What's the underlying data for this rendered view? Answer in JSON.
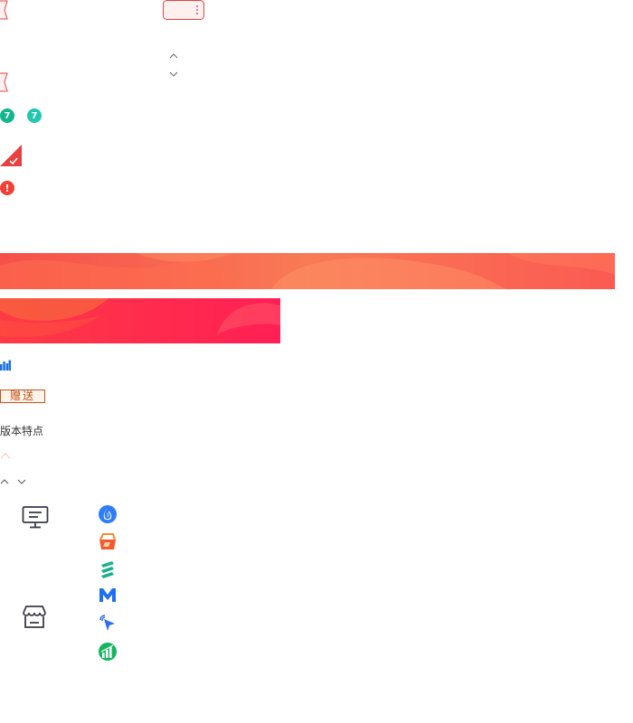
{
  "gift_button": {
    "label": "赠送"
  },
  "version_features": {
    "label": "版本特点"
  },
  "badges": {
    "green_1": "7",
    "green_2": "7",
    "error": "!"
  },
  "icons": {
    "ticket_left_1": "ticket-notch-icon",
    "ticket_button": "ticket-more-icon",
    "ticket_left_2": "ticket-notch-icon",
    "chevron_up": "chevron-up-icon",
    "chevron_down": "chevron-down-icon",
    "corner_check": "corner-check-icon",
    "bar_chart": "bar-chart-icon",
    "computer": "computer-icon",
    "store": "store-icon",
    "app_flame": "flame-app-icon",
    "app_shop": "shop-app-icon",
    "app_s": "s-logo-app-icon",
    "app_m": "m-logo-app-icon",
    "app_cursor": "cursor-app-icon",
    "app_growth": "growth-app-icon"
  },
  "colors": {
    "ticket_red": "#e04545",
    "badge_green": "#11b68f",
    "badge_teal": "#21c7b0",
    "error_red": "#f04134",
    "banner_orange": "#f6684d",
    "banner_pink": "#ff2050",
    "chart_blue": "#1a6fe0",
    "gift_border": "#c2531c"
  }
}
